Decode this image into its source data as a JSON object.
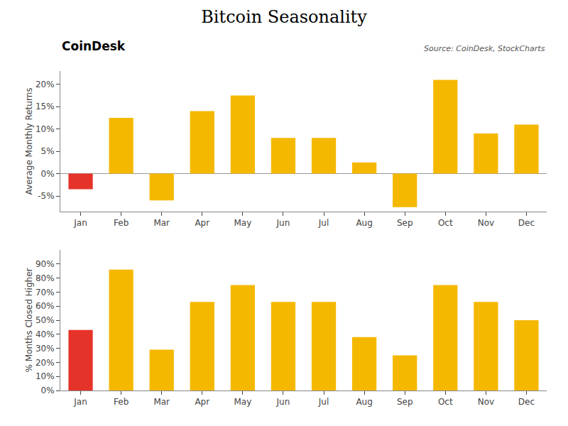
{
  "chart_data": [
    {
      "type": "bar",
      "title": "Bitcoin Seasonality",
      "annotations": [
        "Source: CoinDesk, StockCharts",
        "CoinDesk"
      ],
      "categories": [
        "Jan",
        "Feb",
        "Mar",
        "Apr",
        "May",
        "Jun",
        "Jul",
        "Aug",
        "Sep",
        "Oct",
        "Nov",
        "Dec"
      ],
      "values": [
        -3.5,
        12.5,
        -6.0,
        14.0,
        17.5,
        8.0,
        8.0,
        2.5,
        -7.5,
        21.0,
        9.0,
        11.0
      ],
      "colors": [
        "#e63329",
        "#f5b800",
        "#f5b800",
        "#f5b800",
        "#f5b800",
        "#f5b800",
        "#f5b800",
        "#f5b800",
        "#f5b800",
        "#f5b800",
        "#f5b800",
        "#f5b800"
      ],
      "ylabel": "Average Monthly Returns",
      "ylim": [
        -8.5,
        23
      ],
      "yticks": [
        {
          "value": -5,
          "label": "-5%"
        },
        {
          "value": 0,
          "label": "0%"
        },
        {
          "value": 5,
          "label": "5%"
        },
        {
          "value": 10,
          "label": "10%"
        },
        {
          "value": 15,
          "label": "15%"
        },
        {
          "value": 20,
          "label": "20%"
        }
      ],
      "grid": false
    },
    {
      "type": "bar",
      "categories": [
        "Jan",
        "Feb",
        "Mar",
        "Apr",
        "May",
        "Jun",
        "Jul",
        "Aug",
        "Sep",
        "Oct",
        "Nov",
        "Dec"
      ],
      "values": [
        43,
        86,
        29,
        63,
        75,
        63,
        63,
        38,
        25,
        75,
        63,
        50
      ],
      "colors": [
        "#e63329",
        "#f5b800",
        "#f5b800",
        "#f5b800",
        "#f5b800",
        "#f5b800",
        "#f5b800",
        "#f5b800",
        "#f5b800",
        "#f5b800",
        "#f5b800",
        "#f5b800"
      ],
      "ylabel": "% Months Closed Higher",
      "ylim": [
        0,
        100
      ],
      "yticks": [
        {
          "value": 0,
          "label": "0%"
        },
        {
          "value": 10,
          "label": "10%"
        },
        {
          "value": 20,
          "label": "20%"
        },
        {
          "value": 30,
          "label": "30%"
        },
        {
          "value": 40,
          "label": "40%"
        },
        {
          "value": 50,
          "label": "50%"
        },
        {
          "value": 60,
          "label": "60%"
        },
        {
          "value": 70,
          "label": "70%"
        },
        {
          "value": 80,
          "label": "80%"
        },
        {
          "value": 90,
          "label": "90%"
        }
      ],
      "grid": false
    }
  ]
}
